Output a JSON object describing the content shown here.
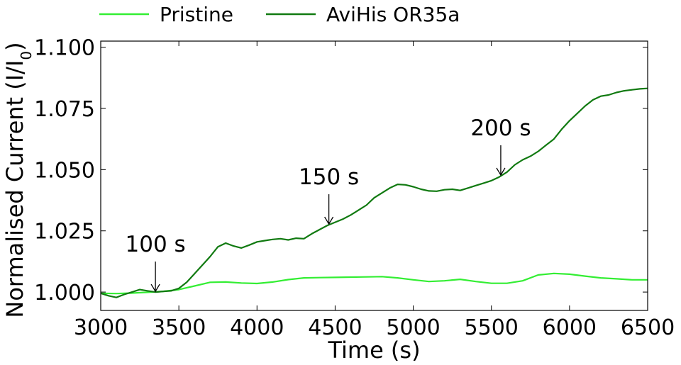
{
  "chart_data": {
    "type": "line",
    "xlabel": "Time (s)",
    "ylabel_main": "Normalised Current (I/I",
    "ylabel_sub": "0",
    "ylabel_tail": ")",
    "xlim": [
      3000,
      6500
    ],
    "ylim": [
      0.9925,
      1.1025
    ],
    "xticks": [
      3000,
      3500,
      4000,
      4500,
      5000,
      5500,
      6000,
      6500
    ],
    "yticks": [
      1.0,
      1.025,
      1.05,
      1.075,
      1.1
    ],
    "ytick_labels": [
      "1.000",
      "1.025",
      "1.050",
      "1.075",
      "1.100"
    ],
    "grid": false,
    "legend_position": "top",
    "series": [
      {
        "name": "Pristine",
        "color": "#33ee33",
        "x": [
          3000,
          3100,
          3200,
          3300,
          3400,
          3500,
          3600,
          3700,
          3800,
          3900,
          4000,
          4100,
          4200,
          4300,
          4400,
          4500,
          4600,
          4700,
          4800,
          4900,
          5000,
          5100,
          5200,
          5300,
          5400,
          5500,
          5600,
          5700,
          5800,
          5900,
          6000,
          6100,
          6200,
          6300,
          6400,
          6500
        ],
        "y": [
          0.9995,
          0.9994,
          0.9996,
          0.9999,
          1.0003,
          1.001,
          1.0025,
          1.004,
          1.0041,
          1.0037,
          1.0035,
          1.0041,
          1.0051,
          1.0058,
          1.0059,
          1.006,
          1.0061,
          1.0062,
          1.0063,
          1.0058,
          1.005,
          1.0043,
          1.0046,
          1.0052,
          1.0043,
          1.0036,
          1.0036,
          1.0046,
          1.007,
          1.0076,
          1.0073,
          1.0065,
          1.0058,
          1.0054,
          1.005,
          1.005
        ]
      },
      {
        "name": "AviHis OR35a",
        "color": "#117a11",
        "x": [
          3000,
          3050,
          3100,
          3150,
          3200,
          3250,
          3300,
          3350,
          3400,
          3450,
          3500,
          3550,
          3600,
          3650,
          3700,
          3750,
          3800,
          3850,
          3900,
          3950,
          4000,
          4050,
          4100,
          4150,
          4200,
          4250,
          4300,
          4350,
          4400,
          4450,
          4500,
          4550,
          4600,
          4650,
          4700,
          4750,
          4800,
          4850,
          4900,
          4950,
          5000,
          5050,
          5100,
          5150,
          5200,
          5250,
          5300,
          5350,
          5400,
          5450,
          5500,
          5550,
          5600,
          5650,
          5700,
          5750,
          5800,
          5850,
          5900,
          5950,
          6000,
          6050,
          6100,
          6150,
          6200,
          6250,
          6300,
          6350,
          6400,
          6450,
          6500
        ],
        "y": [
          0.9995,
          0.9985,
          0.9978,
          0.999,
          1.0,
          1.001,
          1.0005,
          1.0,
          1.0003,
          1.0005,
          1.0015,
          1.004,
          1.0075,
          1.011,
          1.0145,
          1.0185,
          1.02,
          1.0188,
          1.018,
          1.0192,
          1.0205,
          1.021,
          1.0215,
          1.0218,
          1.0213,
          1.022,
          1.0218,
          1.0238,
          1.0255,
          1.0272,
          1.0285,
          1.0298,
          1.0315,
          1.0335,
          1.0355,
          1.0385,
          1.0405,
          1.0425,
          1.044,
          1.0438,
          1.043,
          1.042,
          1.0413,
          1.0412,
          1.0418,
          1.042,
          1.0415,
          1.0425,
          1.0435,
          1.0445,
          1.0455,
          1.047,
          1.049,
          1.052,
          1.054,
          1.0555,
          1.0575,
          1.06,
          1.0625,
          1.0665,
          1.07,
          1.073,
          1.076,
          1.0785,
          1.08,
          1.0805,
          1.0815,
          1.0822,
          1.0826,
          1.083,
          1.0832
        ]
      }
    ],
    "annotations": [
      {
        "text": "100 s",
        "x": 3350,
        "y": 1.0003
      },
      {
        "text": "150 s",
        "x": 4460,
        "y": 1.0278
      },
      {
        "text": "200 s",
        "x": 5560,
        "y": 1.0478
      }
    ]
  }
}
